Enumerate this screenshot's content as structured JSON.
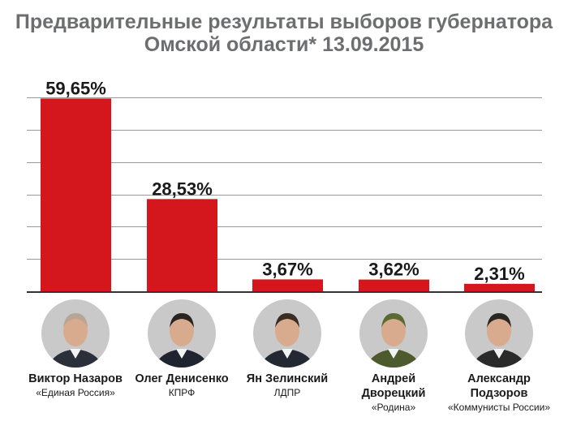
{
  "title_line1": "Предварительные результаты выборов губернатора",
  "title_line2": "Омской области* 13.09.2015",
  "colors": {
    "bar": "#d4171d",
    "grid": "#9a9a9a",
    "axis": "#333333",
    "title": "#6d6e70",
    "label": "#1a1a1a",
    "portrait_bg": "#c9c9c9"
  },
  "chart_data": {
    "type": "bar",
    "title": "Предварительные результаты выборов губернатора Омской области* 13.09.2015",
    "categories": [
      "Виктор Назаров",
      "Олег Денисенко",
      "Ян Зелинский",
      "Андрей Дворецкий",
      "Александр Подзоров"
    ],
    "values": [
      59.65,
      28.53,
      3.67,
      3.62,
      2.31
    ],
    "value_labels": [
      "59,65%",
      "28,53%",
      "3,67%",
      "3,62%",
      "2,31%"
    ],
    "ylim": [
      0,
      60
    ],
    "grid": true,
    "xlabel": "",
    "ylabel": ""
  },
  "candidates": [
    {
      "name_lines": [
        "Виктор Назаров"
      ],
      "party": "«Единая Россия»",
      "portrait_icon": "portrait-nazarov"
    },
    {
      "name_lines": [
        "Олег Денисенко"
      ],
      "party": "КПРФ",
      "portrait_icon": "portrait-denisenko"
    },
    {
      "name_lines": [
        "Ян Зелинский"
      ],
      "party": "ЛДПР",
      "portrait_icon": "portrait-zelinsky"
    },
    {
      "name_lines": [
        "Андрей",
        "Дворецкий"
      ],
      "party": "«Родина»",
      "portrait_icon": "portrait-dvoretsky"
    },
    {
      "name_lines": [
        "Александр",
        "Подзоров"
      ],
      "party": "«Коммунисты России»",
      "portrait_icon": "portrait-podzorov"
    }
  ]
}
